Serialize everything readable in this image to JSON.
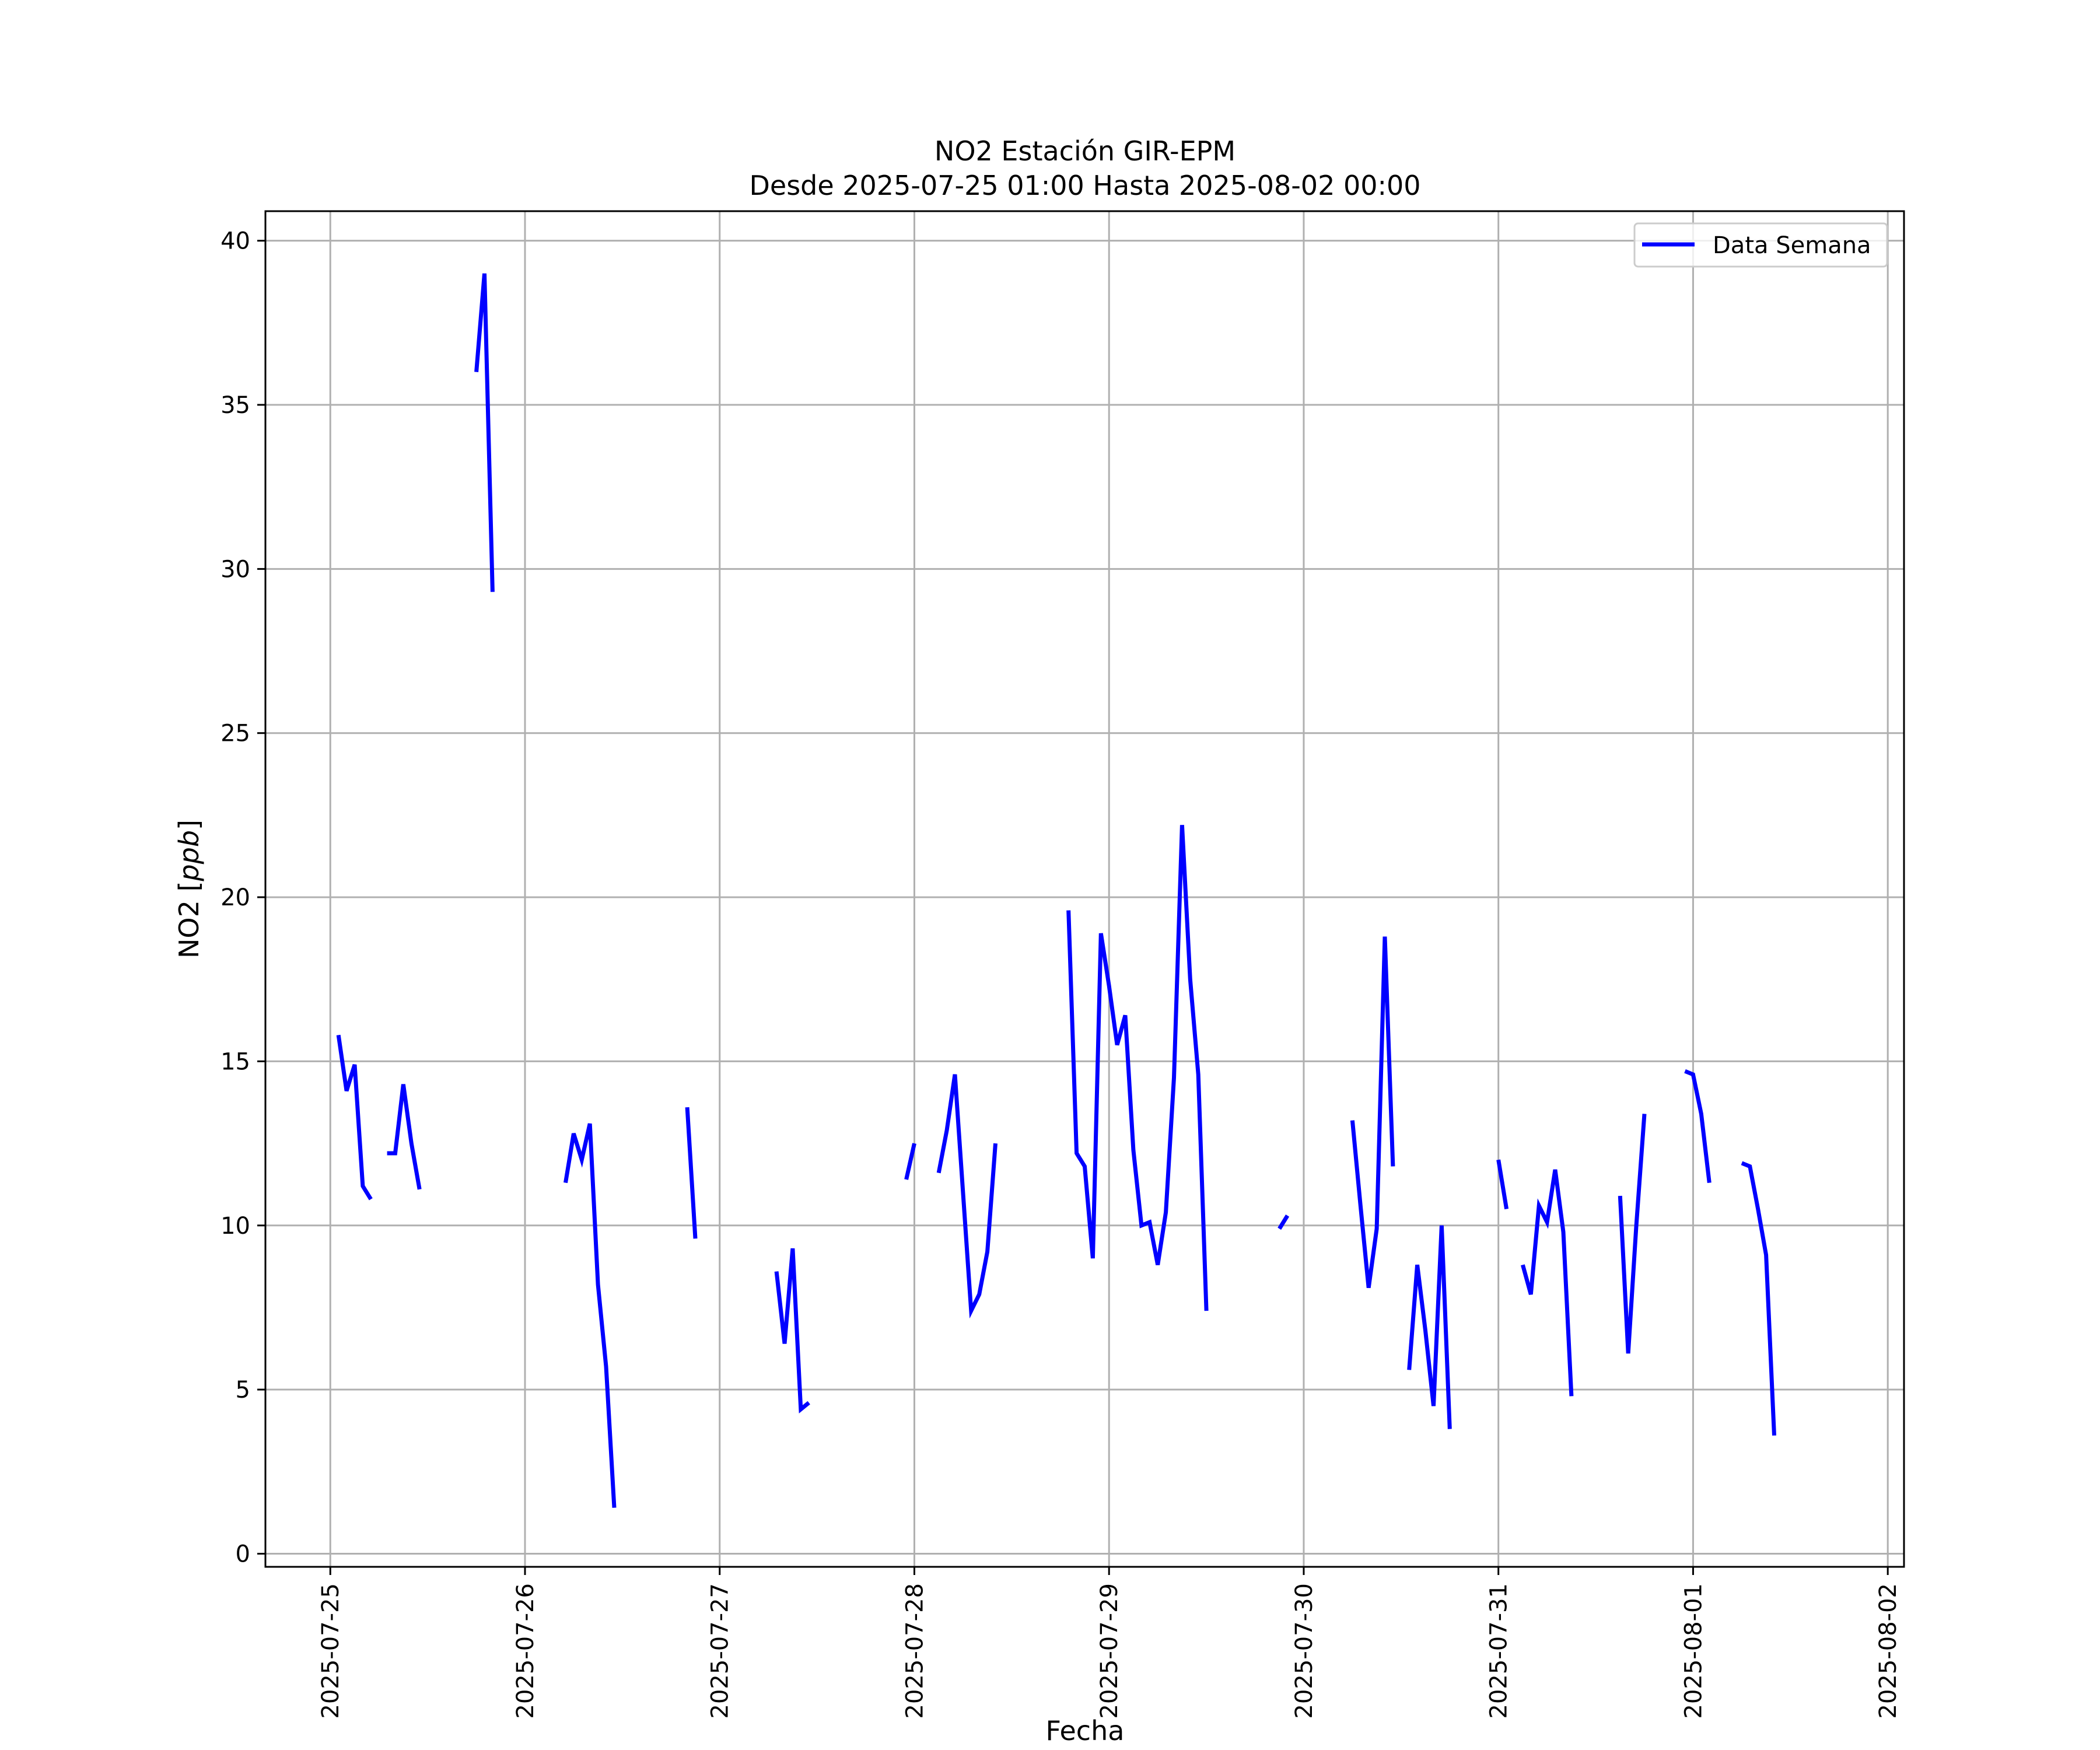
{
  "colors": {
    "line": "#0000ff",
    "grid": "#b0b0b0",
    "axes": "#000000",
    "background": "#ffffff"
  },
  "chart_data": {
    "type": "line",
    "title": "NO2 Estación GIR-EPM",
    "subtitle": "Desde 2025-07-25 01:00 Hasta 2025-08-02 00:00",
    "xlabel": "Fecha",
    "ylabel_prefix": "NO2 [",
    "ylabel_unit": "ppb",
    "ylabel_suffix": "]",
    "xlim": [
      "2025-07-24 16:00",
      "2025-08-02 02:00"
    ],
    "ylim": [
      -0.4,
      40.9
    ],
    "x_ticks": [
      "2025-07-25",
      "2025-07-26",
      "2025-07-27",
      "2025-07-28",
      "2025-07-29",
      "2025-07-30",
      "2025-07-31",
      "2025-08-01",
      "2025-08-02"
    ],
    "y_ticks": [
      0,
      5,
      10,
      15,
      20,
      25,
      30,
      35,
      40
    ],
    "grid": true,
    "legend": {
      "position": "upper right",
      "entries": [
        "Data Semana"
      ]
    },
    "series": [
      {
        "name": "Data Semana",
        "segments": [
          [
            [
              "2025-07-25 01:00",
              15.8
            ],
            [
              "2025-07-25 02:00",
              14.1
            ],
            [
              "2025-07-25 03:00",
              14.9
            ],
            [
              "2025-07-25 04:00",
              11.2
            ],
            [
              "2025-07-25 05:00",
              10.8
            ]
          ],
          [
            [
              "2025-07-25 07:00",
              12.2
            ],
            [
              "2025-07-25 08:00",
              12.2
            ],
            [
              "2025-07-25 09:00",
              14.3
            ],
            [
              "2025-07-25 10:00",
              12.5
            ],
            [
              "2025-07-25 11:00",
              11.1
            ]
          ],
          [
            [
              "2025-07-25 18:00",
              36.0
            ],
            [
              "2025-07-25 19:00",
              39.0
            ],
            [
              "2025-07-25 20:00",
              29.3
            ]
          ],
          [
            [
              "2025-07-26 05:00",
              11.3
            ],
            [
              "2025-07-26 06:00",
              12.8
            ],
            [
              "2025-07-26 07:00",
              12.0
            ],
            [
              "2025-07-26 08:00",
              13.1
            ],
            [
              "2025-07-26 09:00",
              8.2
            ],
            [
              "2025-07-26 10:00",
              5.7
            ],
            [
              "2025-07-26 11:00",
              1.4
            ]
          ],
          [
            [
              "2025-07-26 20:00",
              13.6
            ],
            [
              "2025-07-26 21:00",
              9.6
            ]
          ],
          [
            [
              "2025-07-27 07:00",
              8.6
            ],
            [
              "2025-07-27 08:00",
              6.4
            ],
            [
              "2025-07-27 09:00",
              9.3
            ],
            [
              "2025-07-27 10:00",
              4.4
            ],
            [
              "2025-07-27 11:00",
              4.6
            ]
          ],
          [
            [
              "2025-07-27 23:00",
              11.4
            ],
            [
              "2025-07-28 00:00",
              12.5
            ]
          ],
          [
            [
              "2025-07-28 03:00",
              11.6
            ],
            [
              "2025-07-28 04:00",
              12.9
            ],
            [
              "2025-07-28 05:00",
              14.6
            ],
            [
              "2025-07-28 06:00",
              11.0
            ],
            [
              "2025-07-28 07:00",
              7.4
            ],
            [
              "2025-07-28 08:00",
              7.9
            ],
            [
              "2025-07-28 09:00",
              9.2
            ],
            [
              "2025-07-28 10:00",
              12.5
            ]
          ],
          [
            [
              "2025-07-28 19:00",
              19.6
            ],
            [
              "2025-07-28 20:00",
              12.2
            ],
            [
              "2025-07-28 21:00",
              11.8
            ],
            [
              "2025-07-28 22:00",
              9.0
            ],
            [
              "2025-07-28 23:00",
              18.9
            ],
            [
              "2025-07-29 00:00",
              17.3
            ],
            [
              "2025-07-29 01:00",
              15.5
            ],
            [
              "2025-07-29 02:00",
              16.4
            ],
            [
              "2025-07-29 03:00",
              12.3
            ],
            [
              "2025-07-29 04:00",
              10.0
            ],
            [
              "2025-07-29 05:00",
              10.1
            ],
            [
              "2025-07-29 06:00",
              8.8
            ],
            [
              "2025-07-29 07:00",
              10.4
            ],
            [
              "2025-07-29 08:00",
              14.5
            ],
            [
              "2025-07-29 09:00",
              22.2
            ],
            [
              "2025-07-29 10:00",
              17.5
            ],
            [
              "2025-07-29 11:00",
              14.6
            ],
            [
              "2025-07-29 12:00",
              7.4
            ]
          ],
          [
            [
              "2025-07-29 21:00",
              9.9
            ],
            [
              "2025-07-29 22:00",
              10.3
            ]
          ],
          [
            [
              "2025-07-30 06:00",
              13.2
            ],
            [
              "2025-07-30 07:00",
              10.6
            ],
            [
              "2025-07-30 08:00",
              8.1
            ],
            [
              "2025-07-30 09:00",
              9.9
            ],
            [
              "2025-07-30 10:00",
              18.8
            ],
            [
              "2025-07-30 11:00",
              11.8
            ]
          ],
          [
            [
              "2025-07-30 13:00",
              5.6
            ],
            [
              "2025-07-30 14:00",
              8.8
            ],
            [
              "2025-07-30 15:00",
              6.8
            ],
            [
              "2025-07-30 16:00",
              4.5
            ],
            [
              "2025-07-30 17:00",
              10.0
            ],
            [
              "2025-07-30 18:00",
              3.8
            ]
          ],
          [
            [
              "2025-07-31 00:00",
              12.0
            ],
            [
              "2025-07-31 01:00",
              10.5
            ]
          ],
          [
            [
              "2025-07-31 03:00",
              8.8
            ],
            [
              "2025-07-31 04:00",
              7.9
            ],
            [
              "2025-07-31 05:00",
              10.6
            ],
            [
              "2025-07-31 06:00",
              10.1
            ],
            [
              "2025-07-31 07:00",
              11.7
            ],
            [
              "2025-07-31 08:00",
              9.8
            ],
            [
              "2025-07-31 09:00",
              4.8
            ]
          ],
          [
            [
              "2025-07-31 15:00",
              10.9
            ],
            [
              "2025-07-31 16:00",
              6.1
            ],
            [
              "2025-07-31 17:00",
              10.0
            ],
            [
              "2025-07-31 18:00",
              13.4
            ]
          ],
          [
            [
              "2025-07-31 23:00",
              14.7
            ],
            [
              "2025-08-01 00:00",
              14.6
            ],
            [
              "2025-08-01 01:00",
              13.4
            ],
            [
              "2025-08-01 02:00",
              11.3
            ]
          ],
          [
            [
              "2025-08-01 06:00",
              11.9
            ],
            [
              "2025-08-01 07:00",
              11.8
            ],
            [
              "2025-08-01 08:00",
              10.5
            ],
            [
              "2025-08-01 09:00",
              9.1
            ],
            [
              "2025-08-01 10:00",
              3.6
            ]
          ]
        ]
      }
    ]
  }
}
